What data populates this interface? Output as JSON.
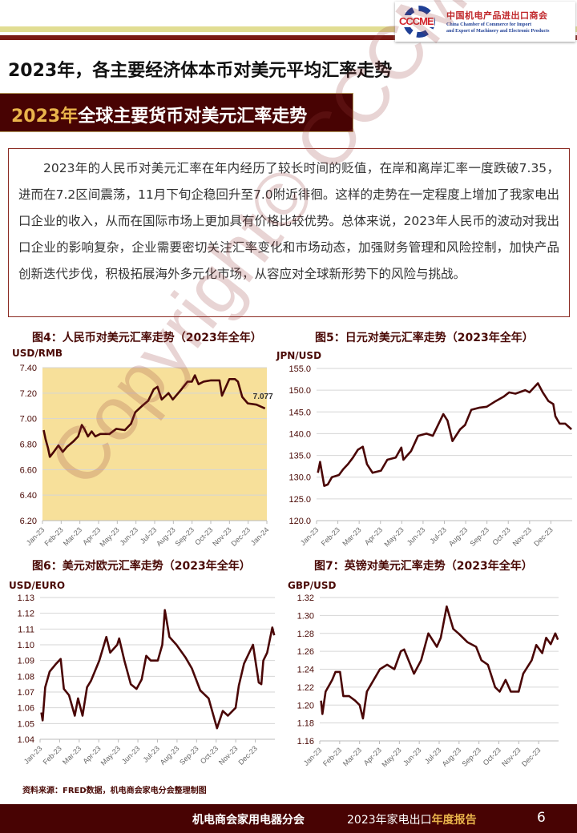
{
  "header": {
    "logo_mark": "CCCME",
    "logo_cn": "中国机电产品进出口商会",
    "logo_en_1": "China Chamber of Commerce for Import",
    "logo_en_2": "and Export of Machinery and Electronic Products",
    "band_colors": [
      "#e1dd92",
      "#7a1a14"
    ]
  },
  "page_title": "2023年，各主要经济体本币对美元平均汇率走势",
  "banner": {
    "year": "2023年",
    "title": "全球主要货币对美元汇率走势"
  },
  "body_text": "2023年的人民币对美元汇率在年内经历了较长时间的贬值，在岸和离岸汇率一度跌破7.35，进而在7.2区间震荡，11月下旬企稳回升至7.0附近徘徊。这样的走势在一定程度上增加了我家电出口企业的收入，从而在国际市场上更加具有价格比较优势。总体来说，2023年人民币的波动对我出口企业的影响复杂，企业需要密切关注汇率变化和市场动态，加强财务管理和风险控制，加快产品创新迭代步伐，积极拓展海外多元化市场，从容应对全球新形势下的风险与挑战。",
  "watermark": "Copyright© CCCME",
  "chart_data": [
    {
      "type": "line",
      "title": "图4：人民币对美元汇率走势（2023年全年）",
      "ylabel": "USD/RMB",
      "ylim": [
        6.2,
        7.4
      ],
      "yticks": [
        "6.20",
        "6.40",
        "6.60",
        "6.80",
        "7.00",
        "7.20",
        "7.40"
      ],
      "xlim": [
        "2023-01-01",
        "2024-01-01"
      ],
      "xticks": [
        "Jan-23",
        "Feb-23",
        "Mar-23",
        "Apr-23",
        "May-23",
        "Jun-23",
        "Jul-23",
        "Aug-23",
        "Sep-23",
        "Oct-23",
        "Nov-23",
        "Dec-23",
        "Jan-24"
      ],
      "background": "#f7e09a",
      "line_color": "#4a0606",
      "grid": true,
      "annotation": "7.077",
      "x": [
        "2023-01-03",
        "2023-01-06",
        "2023-01-10",
        "2023-01-13",
        "2023-01-18",
        "2023-01-27",
        "2023-02-03",
        "2023-02-10",
        "2023-02-20",
        "2023-02-28",
        "2023-03-06",
        "2023-03-10",
        "2023-03-16",
        "2023-03-22",
        "2023-03-28",
        "2023-04-05",
        "2023-04-20",
        "2023-05-01",
        "2023-05-15",
        "2023-05-25",
        "2023-06-01",
        "2023-06-12",
        "2023-06-22",
        "2023-07-01",
        "2023-07-07",
        "2023-07-14",
        "2023-07-25",
        "2023-08-01",
        "2023-08-15",
        "2023-08-25",
        "2023-09-01",
        "2023-09-06",
        "2023-09-12",
        "2023-09-20",
        "2023-10-02",
        "2023-10-16",
        "2023-10-20",
        "2023-11-01",
        "2023-11-10",
        "2023-11-15",
        "2023-11-22",
        "2023-12-01",
        "2023-12-15",
        "2023-12-29"
      ],
      "y": [
        6.91,
        6.84,
        6.77,
        6.7,
        6.73,
        6.79,
        6.74,
        6.78,
        6.82,
        6.86,
        6.95,
        6.92,
        6.86,
        6.9,
        6.86,
        6.88,
        6.88,
        6.92,
        6.91,
        6.96,
        7.05,
        7.1,
        7.14,
        7.23,
        7.25,
        7.15,
        7.2,
        7.15,
        7.23,
        7.29,
        7.29,
        7.34,
        7.27,
        7.29,
        7.3,
        7.3,
        7.18,
        7.31,
        7.31,
        7.29,
        7.17,
        7.12,
        7.11,
        7.08
      ]
    },
    {
      "type": "line",
      "title": "图5：日元对美元汇率走势（2023年全年）",
      "ylabel": "JPN/USD",
      "ylim": [
        120,
        155
      ],
      "yticks": [
        "120.0",
        "125.0",
        "130.0",
        "135.0",
        "140.0",
        "145.0",
        "150.0",
        "155.0"
      ],
      "xlim": [
        "2023-01-01",
        "2024-01-01"
      ],
      "xticks": [
        "Jan-23",
        "Feb-23",
        "Mar-23",
        "Apr-23",
        "May-23",
        "Jun-23",
        "Jul-23",
        "Aug-23",
        "Sep-23",
        "Oct-23",
        "Nov-23",
        "Dec-23"
      ],
      "line_color": "#4a0606",
      "grid": true,
      "x": [
        "2023-01-03",
        "2023-01-06",
        "2023-01-12",
        "2023-01-17",
        "2023-01-23",
        "2023-02-02",
        "2023-02-08",
        "2023-02-15",
        "2023-02-22",
        "2023-03-01",
        "2023-03-08",
        "2023-03-14",
        "2023-03-22",
        "2023-04-03",
        "2023-04-12",
        "2023-04-24",
        "2023-05-02",
        "2023-05-05",
        "2023-05-16",
        "2023-05-26",
        "2023-06-07",
        "2023-06-16",
        "2023-06-22",
        "2023-07-01",
        "2023-07-07",
        "2023-07-14",
        "2023-07-25",
        "2023-08-01",
        "2023-08-10",
        "2023-08-22",
        "2023-09-01",
        "2023-09-14",
        "2023-09-25",
        "2023-10-03",
        "2023-10-12",
        "2023-10-26",
        "2023-11-01",
        "2023-11-13",
        "2023-11-20",
        "2023-11-28",
        "2023-12-05",
        "2023-12-08",
        "2023-12-14",
        "2023-12-22",
        "2023-12-31"
      ],
      "y": [
        131,
        133.5,
        128,
        128.3,
        130,
        130.5,
        131.8,
        133,
        134.5,
        136.3,
        137,
        133,
        131,
        131.5,
        134,
        134.5,
        136.8,
        134,
        136,
        139.5,
        140,
        139.5,
        141.5,
        144.5,
        143,
        138.3,
        141,
        142,
        145.5,
        146,
        146.2,
        147.5,
        148.5,
        149.5,
        149.2,
        150,
        149.5,
        151.6,
        149.5,
        147.5,
        146.8,
        144,
        142.3,
        142.3,
        141
      ]
    },
    {
      "type": "line",
      "title": "图6：美元对欧元汇率走势（2023年全年）",
      "ylabel": "USD/EURO",
      "ylim": [
        1.04,
        1.13
      ],
      "yticks": [
        "1.04",
        "1.05",
        "1.06",
        "1.07",
        "1.08",
        "1.09",
        "1.10",
        "1.11",
        "1.12",
        "1.13"
      ],
      "xlim": [
        "2023-01-01",
        "2024-01-01"
      ],
      "xticks": [
        "Jan-23",
        "Feb-23",
        "Mar-23",
        "Apr-23",
        "May-23",
        "Jun-23",
        "Jul-23",
        "Aug-23",
        "Sep-23",
        "Oct-23",
        "Nov-23",
        "Dec-23"
      ],
      "line_color": "#4a0606",
      "grid": true,
      "x": [
        "2023-01-03",
        "2023-01-05",
        "2023-01-09",
        "2023-01-16",
        "2023-01-26",
        "2023-02-02",
        "2023-02-07",
        "2023-02-15",
        "2023-02-24",
        "2023-03-01",
        "2023-03-08",
        "2023-03-15",
        "2023-03-21",
        "2023-04-03",
        "2023-04-14",
        "2023-04-20",
        "2023-05-01",
        "2023-05-04",
        "2023-05-12",
        "2023-05-22",
        "2023-05-31",
        "2023-06-08",
        "2023-06-15",
        "2023-06-22",
        "2023-07-03",
        "2023-07-10",
        "2023-07-14",
        "2023-07-21",
        "2023-08-01",
        "2023-08-15",
        "2023-08-25",
        "2023-09-07",
        "2023-09-20",
        "2023-10-03",
        "2023-10-12",
        "2023-10-20",
        "2023-11-01",
        "2023-11-06",
        "2023-11-14",
        "2023-11-28",
        "2023-12-07",
        "2023-12-11",
        "2023-12-14",
        "2023-12-20",
        "2023-12-28",
        "2023-12-31"
      ],
      "y": [
        1.057,
        1.052,
        1.073,
        1.083,
        1.088,
        1.091,
        1.072,
        1.068,
        1.055,
        1.066,
        1.055,
        1.073,
        1.077,
        1.09,
        1.105,
        1.095,
        1.1,
        1.104,
        1.09,
        1.075,
        1.072,
        1.078,
        1.093,
        1.09,
        1.09,
        1.1,
        1.122,
        1.105,
        1.1,
        1.092,
        1.085,
        1.071,
        1.066,
        1.047,
        1.058,
        1.055,
        1.06,
        1.074,
        1.088,
        1.1,
        1.076,
        1.075,
        1.09,
        1.095,
        1.111,
        1.106
      ]
    },
    {
      "type": "line",
      "title": "图7：英镑对美元汇率走势（2023年全年）",
      "ylabel": "GBP/USD",
      "ylim": [
        1.16,
        1.32
      ],
      "yticks": [
        "1.16",
        "1.18",
        "1.20",
        "1.22",
        "1.24",
        "1.26",
        "1.28",
        "1.30",
        "1.32"
      ],
      "xlim": [
        "2023-01-01",
        "2024-01-01"
      ],
      "xticks": [
        "Jan-23",
        "Feb-23",
        "Mar-23",
        "Apr-23",
        "May-23",
        "Jun-23",
        "Jul-23",
        "Aug-23",
        "Sep-23",
        "Oct-23",
        "Nov-23",
        "Dec-23"
      ],
      "line_color": "#4a0606",
      "grid": true,
      "x": [
        "2023-01-03",
        "2023-01-05",
        "2023-01-10",
        "2023-01-20",
        "2023-01-25",
        "2023-02-01",
        "2023-02-06",
        "2023-02-15",
        "2023-02-24",
        "2023-03-03",
        "2023-03-08",
        "2023-03-14",
        "2023-03-22",
        "2023-04-03",
        "2023-04-14",
        "2023-04-25",
        "2023-05-05",
        "2023-05-10",
        "2023-05-25",
        "2023-06-05",
        "2023-06-16",
        "2023-06-29",
        "2023-07-05",
        "2023-07-14",
        "2023-07-24",
        "2023-08-01",
        "2023-08-15",
        "2023-08-28",
        "2023-09-05",
        "2023-09-15",
        "2023-09-26",
        "2023-10-03",
        "2023-10-12",
        "2023-10-20",
        "2023-11-01",
        "2023-11-08",
        "2023-11-21",
        "2023-11-28",
        "2023-12-07",
        "2023-12-13",
        "2023-12-20",
        "2023-12-27",
        "2023-12-31"
      ],
      "y": [
        1.205,
        1.19,
        1.215,
        1.228,
        1.237,
        1.237,
        1.21,
        1.21,
        1.205,
        1.2,
        1.185,
        1.215,
        1.225,
        1.24,
        1.245,
        1.24,
        1.26,
        1.262,
        1.235,
        1.25,
        1.28,
        1.265,
        1.275,
        1.31,
        1.285,
        1.28,
        1.27,
        1.265,
        1.25,
        1.245,
        1.22,
        1.215,
        1.228,
        1.215,
        1.215,
        1.235,
        1.25,
        1.267,
        1.258,
        1.275,
        1.268,
        1.28,
        1.273
      ]
    }
  ],
  "source": "资料来源：FRED数据，机电商会家电分会整理制图",
  "footer": {
    "org": "机电商会家用电器分会",
    "report_prefix": "2023年家电出口",
    "report_highlight": "年度报告",
    "page_number": "6"
  }
}
